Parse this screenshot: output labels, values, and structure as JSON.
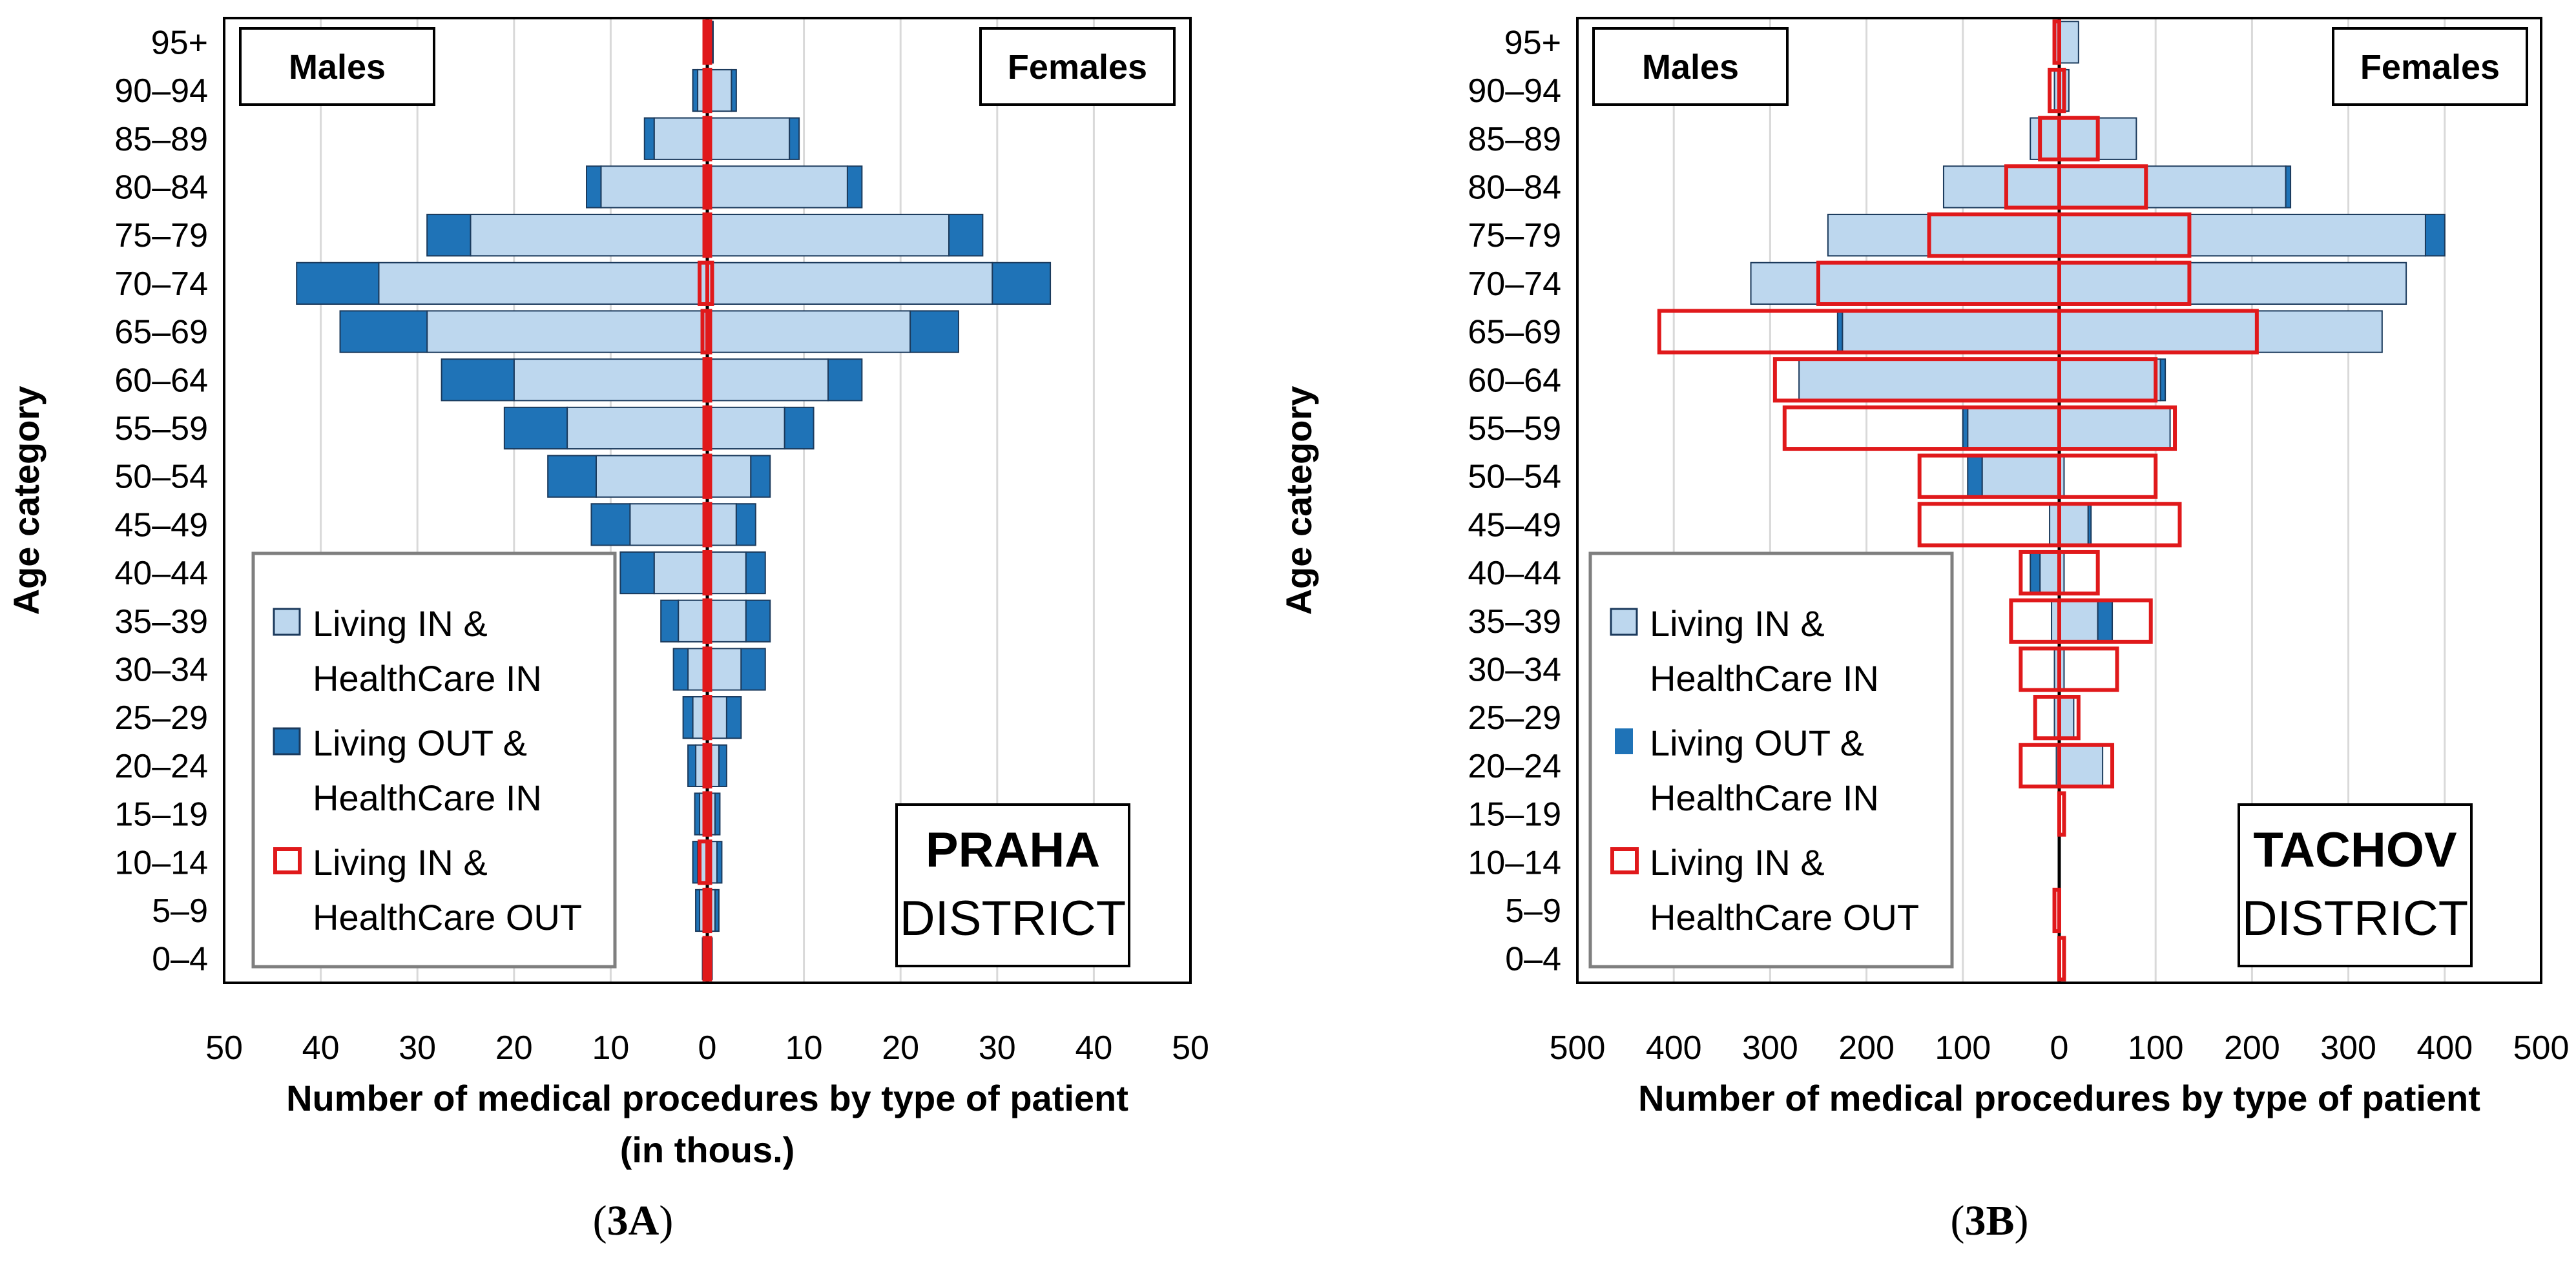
{
  "colors": {
    "in_in": "#BDD7EE",
    "out_in": "#1F73B7",
    "in_out": "#E0191B",
    "edge_dark": "#1B3A5C",
    "center": "#000000"
  },
  "chart_data": [
    {
      "type": "bar",
      "orientation": "horizontal-population-pyramid",
      "caption_bold": "3A",
      "caption_open": "(",
      "caption_close": ")",
      "male_label": "Males",
      "female_label": "Females",
      "district_name": "PRAHA",
      "district_word": "DISTRICT",
      "ylabel": "Age category",
      "xlabel_line1": "Number of medical procedures by type of patient",
      "xlabel_line2": "(in thous.)",
      "xlim": [
        -50,
        50
      ],
      "xticks": [
        -50,
        -40,
        -30,
        -20,
        -10,
        0,
        10,
        20,
        30,
        40,
        50
      ],
      "xtick_labels": [
        "50",
        "40",
        "30",
        "20",
        "10",
        "0",
        "10",
        "20",
        "30",
        "40",
        "50"
      ],
      "legend": [
        {
          "key": "in_in",
          "line1": "Living IN &",
          "line2": "HealthCare IN"
        },
        {
          "key": "out_in",
          "line1": "Living OUT &",
          "line2": "HealthCare IN"
        },
        {
          "key": "in_out",
          "line1": "Living IN &",
          "line2": "HealthCare OUT"
        }
      ],
      "categories": [
        "0–4",
        "5–9",
        "10–14",
        "15–19",
        "20–24",
        "25–29",
        "30–34",
        "35–39",
        "40–44",
        "45–49",
        "50–54",
        "55–59",
        "60–64",
        "65–69",
        "70–74",
        "75–79",
        "80–84",
        "85–89",
        "90–94",
        "95+"
      ],
      "series": [
        {
          "name": "Males – Living IN & HealthCare IN",
          "values": [
            0.3,
            0.8,
            1.0,
            0.8,
            1.2,
            1.5,
            2.0,
            3.0,
            5.5,
            8.0,
            11.5,
            14.5,
            20.0,
            29.0,
            34.0,
            24.5,
            11.0,
            5.5,
            1.0,
            0.1
          ]
        },
        {
          "name": "Males – Living OUT & HealthCare IN",
          "values": [
            0.2,
            0.4,
            0.5,
            0.5,
            0.8,
            1.0,
            1.5,
            1.8,
            3.5,
            4.0,
            5.0,
            6.5,
            7.5,
            9.0,
            8.5,
            4.5,
            1.5,
            1.0,
            0.5,
            0.0
          ]
        },
        {
          "name": "Males – Living IN & HealthCare OUT",
          "values": [
            0.3,
            0.3,
            0.8,
            0.3,
            0.3,
            0.3,
            0.3,
            0.3,
            0.3,
            0.3,
            0.3,
            0.3,
            0.3,
            0.5,
            0.8,
            0.3,
            0.3,
            0.3,
            0.3,
            0.3
          ]
        },
        {
          "name": "Females – Living IN & HealthCare IN",
          "values": [
            0.3,
            0.8,
            1.0,
            0.8,
            1.2,
            2.0,
            3.5,
            4.0,
            4.0,
            3.0,
            4.5,
            8.0,
            12.5,
            21.0,
            29.5,
            25.0,
            14.5,
            8.5,
            2.5,
            0.5
          ]
        },
        {
          "name": "Females – Living OUT & HealthCare IN",
          "values": [
            0.2,
            0.4,
            0.5,
            0.5,
            0.8,
            1.5,
            2.5,
            2.5,
            2.0,
            2.0,
            2.0,
            3.0,
            3.5,
            5.0,
            6.0,
            3.5,
            1.5,
            1.0,
            0.5,
            0.1
          ]
        },
        {
          "name": "Females – Living IN & HealthCare OUT",
          "values": [
            0.3,
            0.3,
            0.3,
            0.3,
            0.3,
            0.3,
            0.3,
            0.3,
            0.3,
            0.3,
            0.3,
            0.3,
            0.3,
            0.3,
            0.5,
            0.3,
            0.3,
            0.3,
            0.3,
            0.3
          ]
        }
      ]
    },
    {
      "type": "bar",
      "orientation": "horizontal-population-pyramid",
      "caption_bold": "3B",
      "caption_open": "(",
      "caption_close": ")",
      "male_label": "Males",
      "female_label": "Females",
      "district_name": "TACHOV",
      "district_word": "DISTRICT",
      "ylabel": "Age category",
      "xlabel_line1": "Number of medical procedures by type of patient",
      "xlabel_line2": "",
      "xlim": [
        -500,
        500
      ],
      "xticks": [
        -500,
        -400,
        -300,
        -200,
        -100,
        0,
        100,
        200,
        300,
        400,
        500
      ],
      "xtick_labels": [
        "500",
        "400",
        "300",
        "200",
        "100",
        "0",
        "100",
        "200",
        "300",
        "400",
        "500"
      ],
      "legend": [
        {
          "key": "in_in",
          "line1": "Living IN &",
          "line2": "HealthCare IN"
        },
        {
          "key": "out_in",
          "line1": "Living OUT &",
          "line2": "HealthCare IN"
        },
        {
          "key": "in_out",
          "line1": "Living IN &",
          "line2": "HealthCare OUT"
        }
      ],
      "categories": [
        "0–4",
        "5–9",
        "10–14",
        "15–19",
        "20–24",
        "25–29",
        "30–34",
        "35–39",
        "40–44",
        "45–49",
        "50–54",
        "55–59",
        "60–64",
        "65–69",
        "70–74",
        "75–79",
        "80–84",
        "85–89",
        "90–94",
        "95+"
      ],
      "series": [
        {
          "name": "Males – Living IN & HealthCare IN",
          "values": [
            0,
            0,
            0,
            0,
            3,
            5,
            5,
            8,
            20,
            10,
            80,
            95,
            270,
            225,
            320,
            240,
            120,
            30,
            5,
            5
          ]
        },
        {
          "name": "Males – Living OUT & HealthCare IN",
          "values": [
            0,
            0,
            0,
            0,
            0,
            0,
            0,
            0,
            10,
            0,
            15,
            5,
            0,
            5,
            0,
            0,
            0,
            0,
            0,
            0
          ]
        },
        {
          "name": "Males – Living IN & HealthCare OUT",
          "values": [
            0,
            5,
            0,
            0,
            40,
            25,
            40,
            50,
            40,
            145,
            145,
            285,
            295,
            415,
            250,
            135,
            55,
            20,
            10,
            5
          ]
        },
        {
          "name": "Females – Living IN & HealthCare IN",
          "values": [
            0,
            0,
            0,
            0,
            45,
            15,
            5,
            40,
            5,
            30,
            5,
            115,
            105,
            335,
            360,
            380,
            235,
            80,
            10,
            20
          ]
        },
        {
          "name": "Females – Living OUT & HealthCare IN",
          "values": [
            0,
            0,
            0,
            0,
            0,
            0,
            0,
            15,
            0,
            3,
            0,
            0,
            5,
            0,
            0,
            20,
            5,
            0,
            0,
            0
          ]
        },
        {
          "name": "Females – Living IN & HealthCare OUT",
          "values": [
            5,
            0,
            0,
            5,
            55,
            20,
            60,
            95,
            40,
            125,
            100,
            120,
            100,
            205,
            135,
            135,
            90,
            40,
            5,
            0
          ]
        }
      ]
    }
  ]
}
